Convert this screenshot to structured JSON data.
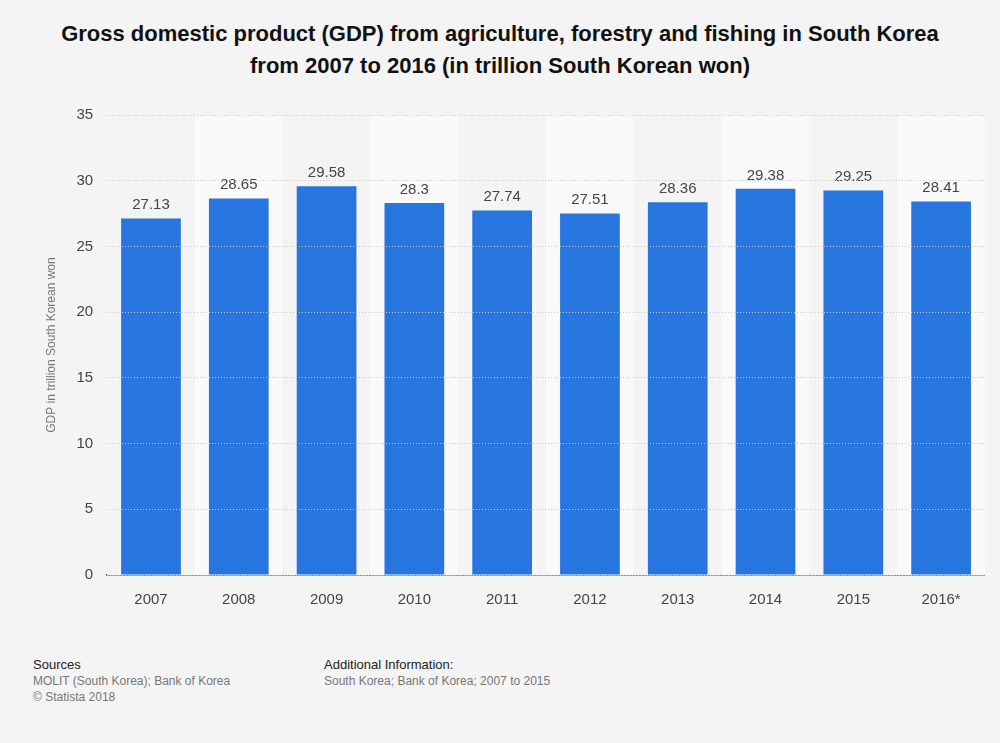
{
  "chart_data": {
    "type": "bar",
    "title": "Gross domestic product (GDP) from agriculture, forestry and fishing in South Korea from 2007 to 2016 (in trillion South Korean won)",
    "y_label": "GDP in trillion South Korean won",
    "categories": [
      "2007",
      "2008",
      "2009",
      "2010",
      "2011",
      "2012",
      "2013",
      "2014",
      "2015",
      "2016*"
    ],
    "values": [
      27.13,
      28.65,
      29.58,
      28.3,
      27.74,
      27.51,
      28.36,
      29.38,
      29.25,
      28.41
    ],
    "color": "#2775de",
    "ylim": [
      0,
      35
    ],
    "yticks": [
      0,
      5,
      10,
      15,
      20,
      25,
      30,
      35
    ],
    "grid": true,
    "data_labels": true
  },
  "footer": {
    "sources_heading": "Sources",
    "sources": [
      "MOLIT (South Korea); Bank of Korea",
      "© Statista 2018"
    ],
    "info_heading": "Additional Information:",
    "info": [
      "South Korea; Bank of Korea; 2007 to 2015"
    ]
  }
}
